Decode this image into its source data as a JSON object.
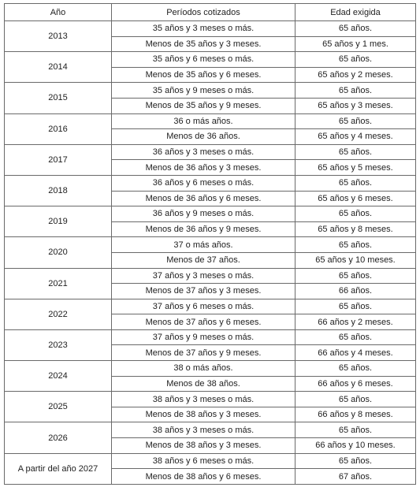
{
  "table": {
    "headers": [
      "Año",
      "Períodos cotizados",
      "Edad exigida"
    ],
    "rows": [
      {
        "year": "2013",
        "entries": [
          {
            "period": "35 años y 3 meses o más.",
            "age": "65 años."
          },
          {
            "period": "Menos de 35 años y 3 meses.",
            "age": "65 años y 1 mes."
          }
        ]
      },
      {
        "year": "2014",
        "entries": [
          {
            "period": "35 años y 6 meses o más.",
            "age": "65 años."
          },
          {
            "period": "Menos de 35 años y 6 meses.",
            "age": "65 años y 2 meses."
          }
        ]
      },
      {
        "year": "2015",
        "entries": [
          {
            "period": "35 años y 9 meses o más.",
            "age": "65 años."
          },
          {
            "period": "Menos de 35 años y 9 meses.",
            "age": "65 años y 3 meses."
          }
        ]
      },
      {
        "year": "2016",
        "entries": [
          {
            "period": "36 o más años.",
            "age": "65 años."
          },
          {
            "period": "Menos de 36 años.",
            "age": "65 años y 4 meses."
          }
        ]
      },
      {
        "year": "2017",
        "entries": [
          {
            "period": "36 años y 3 meses o más.",
            "age": "65 años."
          },
          {
            "period": "Menos de 36 años y 3 meses.",
            "age": "65 años y 5 meses."
          }
        ]
      },
      {
        "year": "2018",
        "entries": [
          {
            "period": "36 años y 6 meses o más.",
            "age": "65 años."
          },
          {
            "period": "Menos de 36 años y 6 meses.",
            "age": "65 años y 6 meses."
          }
        ]
      },
      {
        "year": "2019",
        "entries": [
          {
            "period": "36 años y 9 meses o más.",
            "age": "65 años."
          },
          {
            "period": "Menos de 36 años y 9 meses.",
            "age": "65 años y 8 meses."
          }
        ]
      },
      {
        "year": "2020",
        "entries": [
          {
            "period": "37 o más años.",
            "age": "65 años."
          },
          {
            "period": "Menos de 37 años.",
            "age": "65 años y 10 meses."
          }
        ]
      },
      {
        "year": "2021",
        "entries": [
          {
            "period": "37 años y 3 meses o más.",
            "age": "65 años."
          },
          {
            "period": "Menos de 37 años y 3 meses.",
            "age": "66 años."
          }
        ]
      },
      {
        "year": "2022",
        "entries": [
          {
            "period": "37 años y 6 meses o más.",
            "age": "65 años."
          },
          {
            "period": "Menos de 37 años y 6 meses.",
            "age": "66 años y 2 meses."
          }
        ]
      },
      {
        "year": "2023",
        "entries": [
          {
            "period": "37 años y 9 meses o más.",
            "age": "65 años."
          },
          {
            "period": "Menos de 37 años y 9 meses.",
            "age": "66 años y 4 meses."
          }
        ]
      },
      {
        "year": "2024",
        "entries": [
          {
            "period": "38 o más años.",
            "age": "65 años."
          },
          {
            "period": "Menos de 38 años.",
            "age": "66 años y 6 meses."
          }
        ]
      },
      {
        "year": "2025",
        "entries": [
          {
            "period": "38 años y 3 meses o más.",
            "age": "65 años."
          },
          {
            "period": "Menos de 38 años y 3 meses.",
            "age": "66 años y 8 meses."
          }
        ]
      },
      {
        "year": "2026",
        "entries": [
          {
            "period": "38 años y 3 meses o más.",
            "age": "65 años."
          },
          {
            "period": "Menos de 38 años y 3 meses.",
            "age": "66 años y 10 meses."
          }
        ]
      },
      {
        "year": "A partir del año 2027",
        "entries": [
          {
            "period": "38 años y 6 meses o más.",
            "age": "65 años."
          },
          {
            "period": "Menos de 38 años y 6 meses.",
            "age": "67 años."
          }
        ]
      }
    ]
  }
}
